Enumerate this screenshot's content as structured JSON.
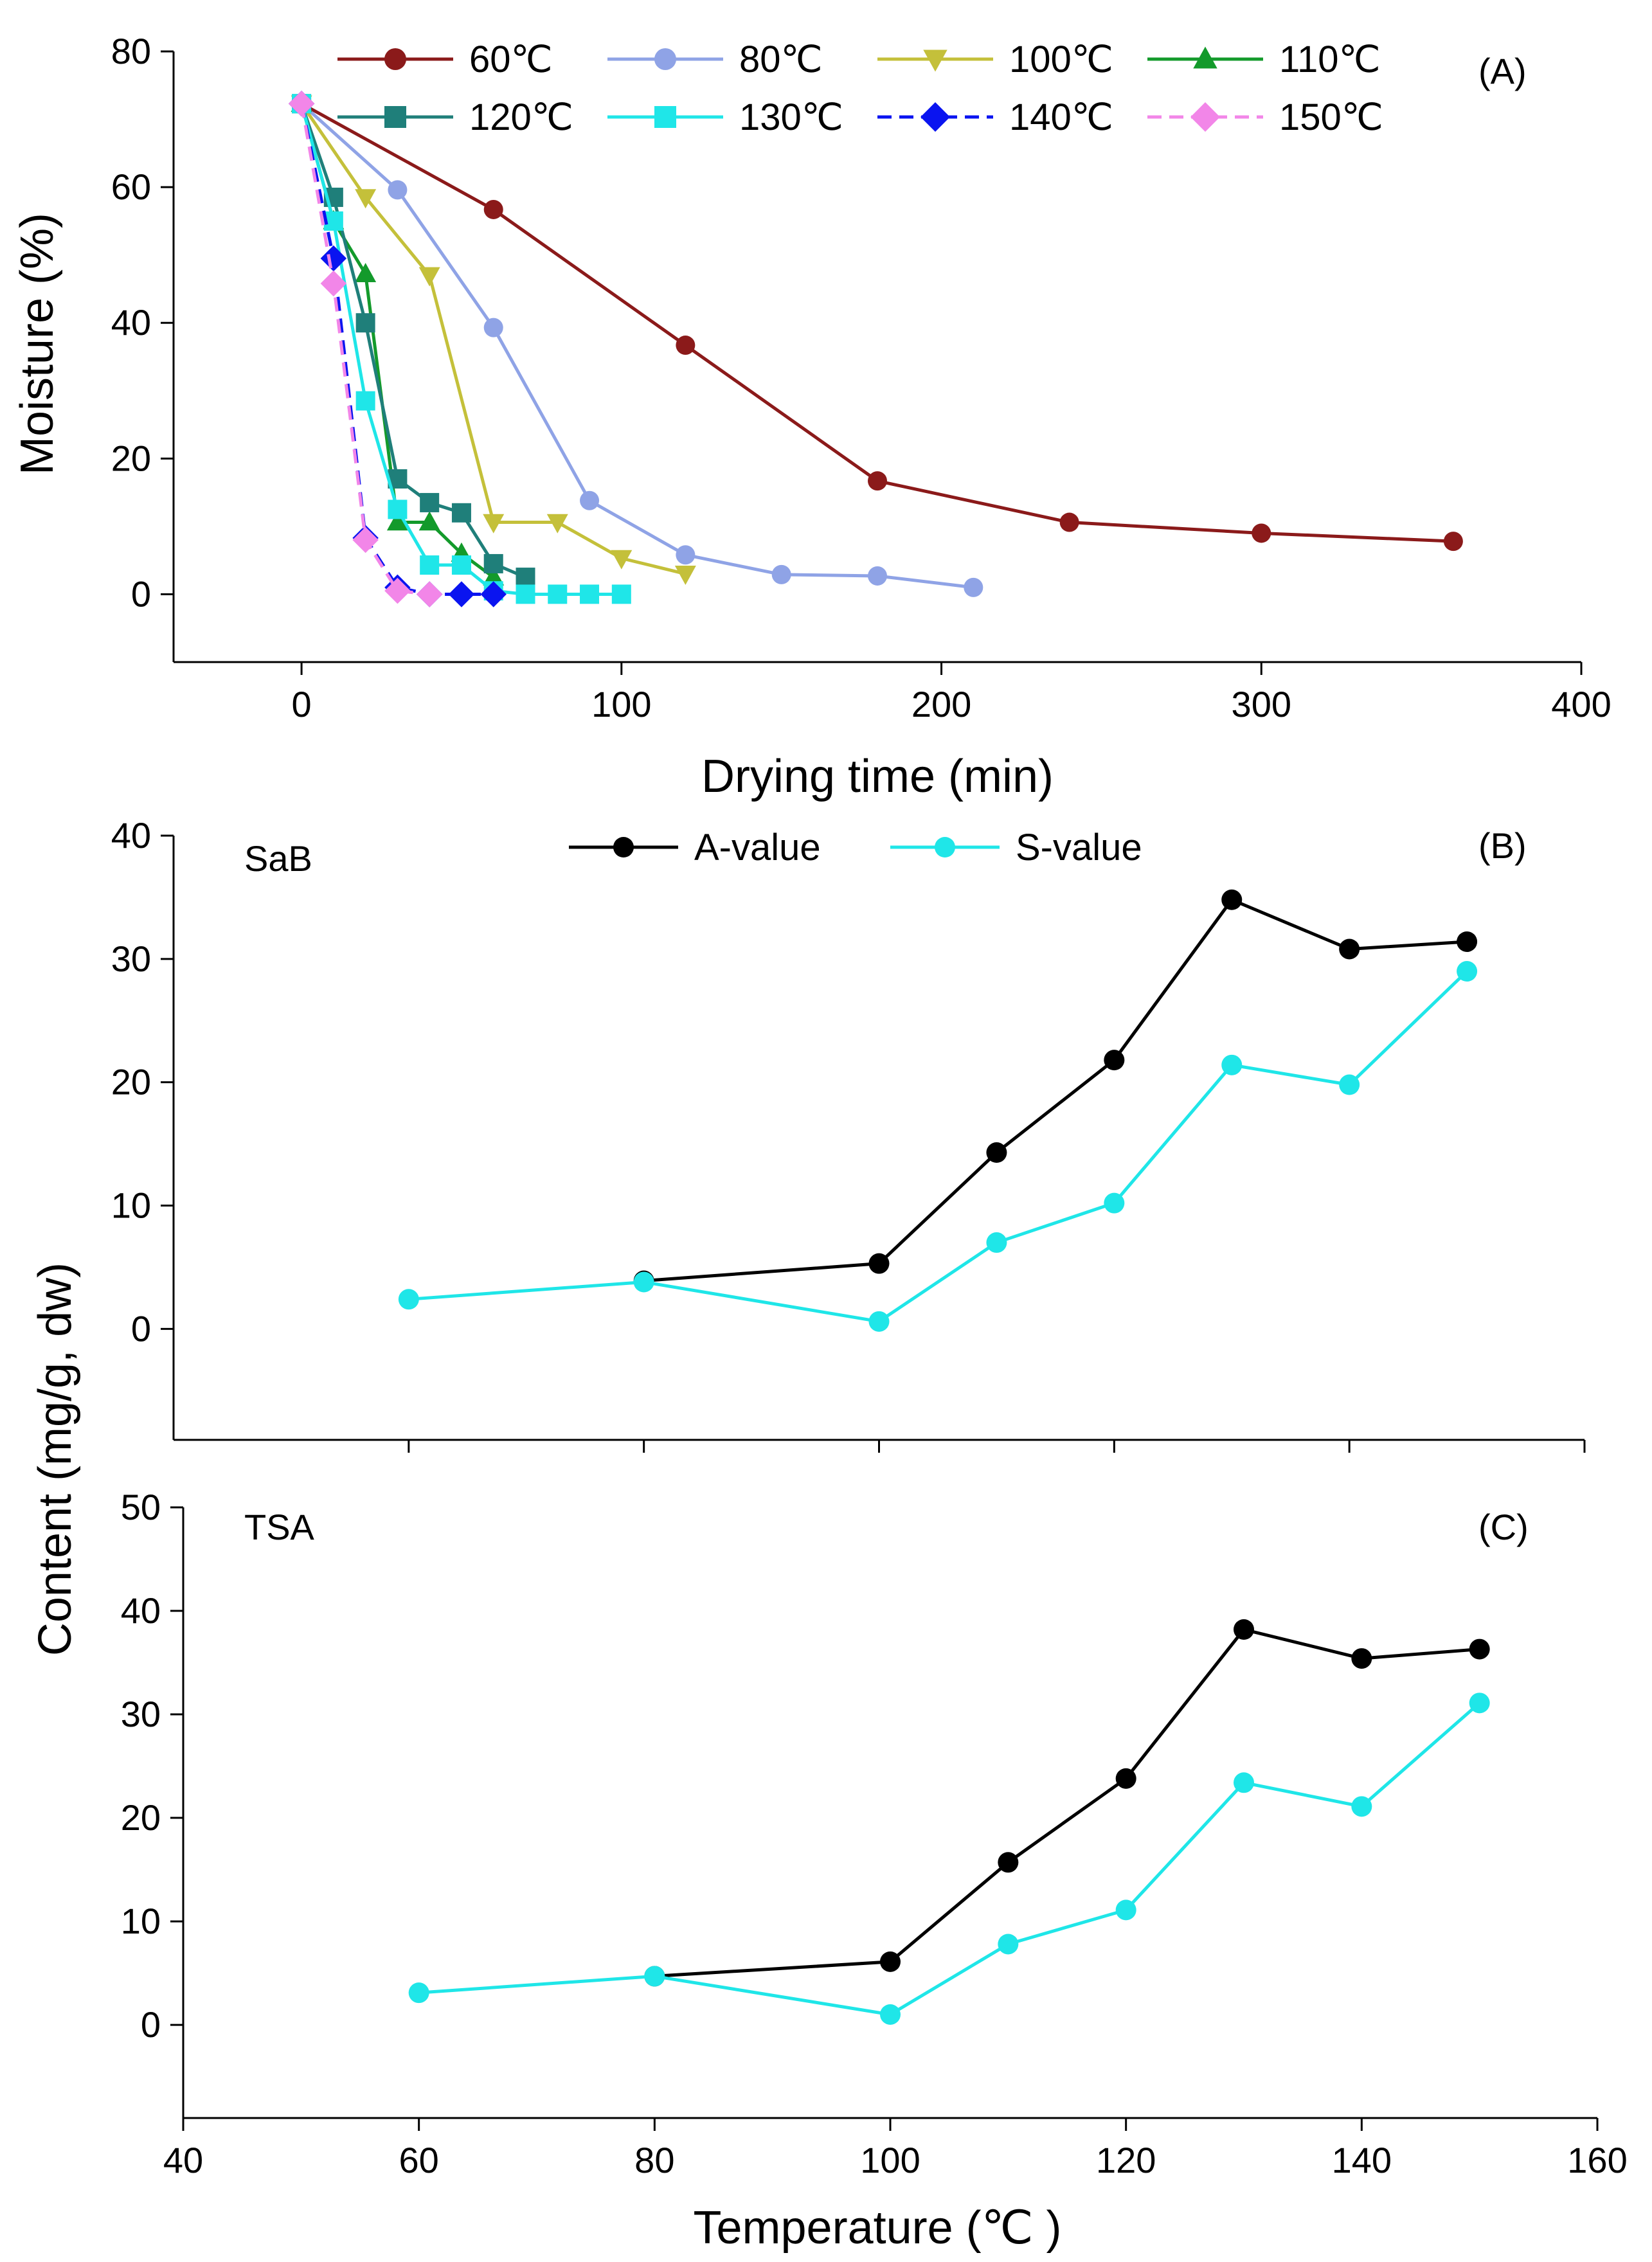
{
  "figure": {
    "shared_ylabel": "Content (mg/g, dw)"
  },
  "chart_data": [
    {
      "type": "line",
      "panel": "(A)",
      "title": "",
      "xlabel": "Drying time (min)",
      "ylabel": "Moisture (%)",
      "xlim": [
        -40,
        400
      ],
      "ylim": [
        -10,
        80
      ],
      "xticks": [
        0,
        100,
        200,
        300,
        400
      ],
      "yticks": [
        0,
        20,
        40,
        60,
        80
      ],
      "grid": false,
      "legend_position": "top",
      "series": [
        {
          "name": "60℃",
          "color": "#8b1a1a",
          "marker": "circle",
          "dashed": false,
          "x": [
            0,
            60,
            120,
            180,
            240,
            300,
            360
          ],
          "y": [
            72.3,
            56.7,
            36.7,
            16.7,
            10.6,
            9.0,
            7.8
          ]
        },
        {
          "name": "80℃",
          "color": "#8fa3e6",
          "marker": "circle",
          "dashed": false,
          "x": [
            0,
            30,
            60,
            90,
            120,
            150,
            180,
            210
          ],
          "y": [
            72.3,
            59.6,
            39.3,
            13.8,
            5.8,
            2.9,
            2.7,
            1.0
          ]
        },
        {
          "name": "100℃",
          "color": "#c4c03a",
          "marker": "triangle-down",
          "dashed": false,
          "x": [
            0,
            20,
            40,
            60,
            80,
            100,
            120
          ],
          "y": [
            72.3,
            58.5,
            47.0,
            10.6,
            10.6,
            5.3,
            3.0
          ]
        },
        {
          "name": "110℃",
          "color": "#139a2b",
          "marker": "triangle-up",
          "dashed": false,
          "x": [
            0,
            10,
            20,
            30,
            40,
            50,
            60
          ],
          "y": [
            72.3,
            55.0,
            47.2,
            10.6,
            10.6,
            6.0,
            2.5
          ]
        },
        {
          "name": "120℃",
          "color": "#1f7f7a",
          "marker": "square",
          "dashed": false,
          "x": [
            0,
            10,
            20,
            30,
            40,
            50,
            60,
            70
          ],
          "y": [
            72.3,
            58.5,
            40.0,
            17.0,
            13.5,
            12.0,
            4.5,
            2.5
          ]
        },
        {
          "name": "130℃",
          "color": "#1fe6e8",
          "marker": "square",
          "dashed": false,
          "x": [
            0,
            10,
            20,
            30,
            40,
            50,
            60,
            70,
            80,
            90,
            100
          ],
          "y": [
            72.3,
            55.0,
            28.5,
            12.5,
            4.3,
            4.3,
            0.5,
            0.0,
            0.0,
            0.0,
            0.0
          ]
        },
        {
          "name": "140℃",
          "color": "#0a14f0",
          "marker": "diamond",
          "dashed": true,
          "x": [
            0,
            10,
            20,
            30,
            40,
            50,
            60
          ],
          "y": [
            72.3,
            49.5,
            8.3,
            1.0,
            0.0,
            0.0,
            0.0
          ]
        },
        {
          "name": "150℃",
          "color": "#f286e8",
          "marker": "diamond",
          "dashed": true,
          "x": [
            0,
            10,
            20,
            30,
            40
          ],
          "y": [
            72.3,
            45.8,
            8.0,
            0.5,
            0.0
          ]
        }
      ]
    },
    {
      "type": "line",
      "panel": "(B)",
      "annotation": "SaB",
      "xlabel": "",
      "ylabel": "",
      "xlim": [
        40,
        160
      ],
      "ylim": [
        -9,
        40
      ],
      "yticks": [
        0,
        10,
        20,
        30,
        40
      ],
      "grid": false,
      "legend_position": "top-center",
      "series": [
        {
          "name": "A-value",
          "color": "#000000",
          "marker": "circle",
          "x": [
            80,
            100,
            110,
            120,
            130,
            140,
            150
          ],
          "y": [
            3.9,
            5.3,
            14.3,
            21.8,
            34.8,
            30.8,
            31.4
          ]
        },
        {
          "name": "S-value",
          "color": "#1fe6e8",
          "marker": "circle",
          "x": [
            60,
            80,
            100,
            110,
            120,
            130,
            140,
            150
          ],
          "y": [
            2.4,
            3.8,
            0.6,
            7.0,
            10.2,
            21.4,
            19.8,
            29.0
          ]
        }
      ]
    },
    {
      "type": "line",
      "panel": "(C)",
      "annotation": "TSA",
      "xlabel": "Temperature (℃ )",
      "ylabel": "",
      "xlim": [
        40,
        160
      ],
      "ylim": [
        -9,
        50
      ],
      "xticks": [
        40,
        60,
        80,
        100,
        120,
        140,
        160
      ],
      "yticks": [
        0,
        10,
        20,
        30,
        40,
        50
      ],
      "grid": false,
      "series": [
        {
          "name": "A-value",
          "color": "#000000",
          "marker": "circle",
          "x": [
            80,
            100,
            110,
            120,
            130,
            140,
            150
          ],
          "y": [
            4.7,
            6.1,
            15.7,
            23.8,
            38.2,
            35.4,
            36.3
          ]
        },
        {
          "name": "S-value",
          "color": "#1fe6e8",
          "marker": "circle",
          "x": [
            60,
            80,
            100,
            110,
            120,
            130,
            140,
            150
          ],
          "y": [
            3.1,
            4.7,
            1.0,
            7.8,
            11.1,
            23.4,
            21.1,
            31.1
          ]
        }
      ]
    }
  ]
}
